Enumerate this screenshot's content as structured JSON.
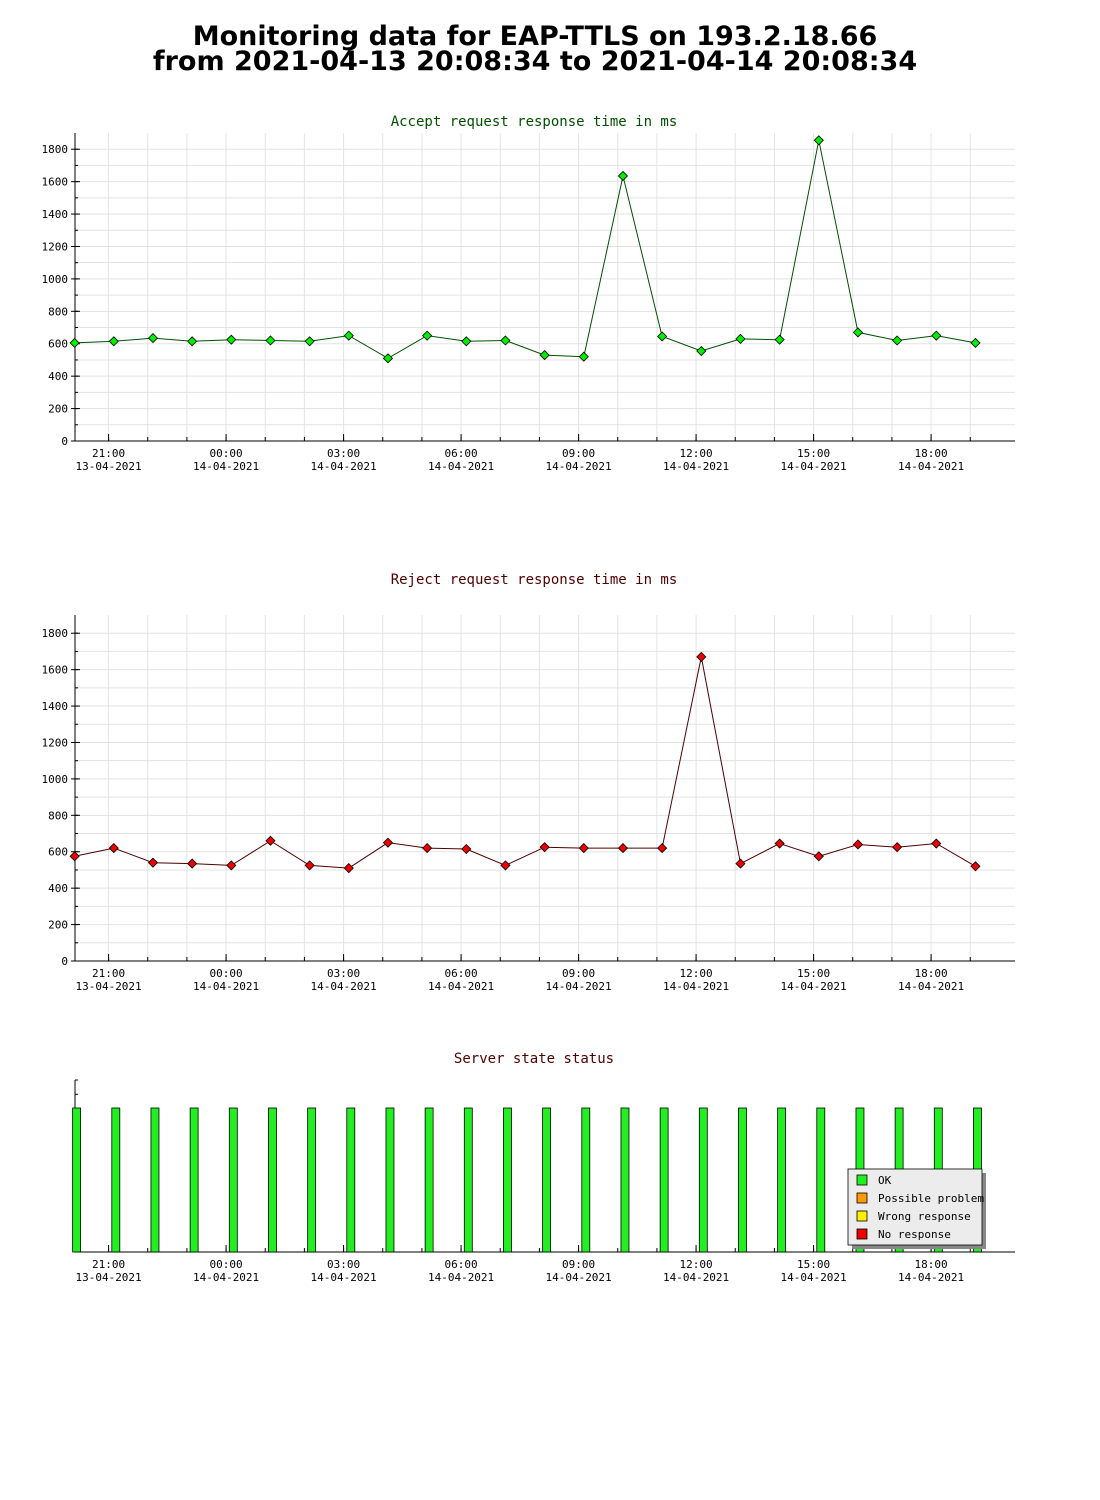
{
  "page": {
    "title_line1": "Monitoring data for EAP-TTLS on 193.2.18.66",
    "title_line2": "from 2021-04-13 20:08:34 to 2021-04-14 20:08:34"
  },
  "chart_data": [
    {
      "type": "line",
      "title": "Accept request response time in ms",
      "title_color": "#005000",
      "line_color": "#005000",
      "marker_color": "#00ee00",
      "xlabel": "",
      "ylabel": "",
      "ylim": [
        0,
        1900
      ],
      "yticks": [
        0,
        200,
        400,
        600,
        800,
        1000,
        1200,
        1400,
        1600,
        1800
      ],
      "grid": true,
      "x": [
        "2021-04-13 20:08",
        "2021-04-13 21:08",
        "2021-04-13 22:08",
        "2021-04-13 23:08",
        "2021-04-14 00:08",
        "2021-04-14 01:08",
        "2021-04-14 02:08",
        "2021-04-14 03:08",
        "2021-04-14 04:08",
        "2021-04-14 05:08",
        "2021-04-14 06:08",
        "2021-04-14 07:08",
        "2021-04-14 08:08",
        "2021-04-14 09:08",
        "2021-04-14 10:08",
        "2021-04-14 11:08",
        "2021-04-14 12:08",
        "2021-04-14 13:08",
        "2021-04-14 14:08",
        "2021-04-14 15:08",
        "2021-04-14 16:08",
        "2021-04-14 17:08",
        "2021-04-14 18:08",
        "2021-04-14 19:08"
      ],
      "values": [
        605,
        615,
        635,
        615,
        625,
        620,
        615,
        650,
        510,
        650,
        615,
        620,
        530,
        520,
        1635,
        645,
        555,
        630,
        625,
        1855,
        670,
        620,
        650,
        605
      ]
    },
    {
      "type": "line",
      "title": "Reject request response time in ms",
      "title_color": "#500000",
      "line_color": "#500000",
      "marker_color": "#ee0000",
      "xlabel": "",
      "ylabel": "",
      "ylim": [
        0,
        1900
      ],
      "yticks": [
        0,
        200,
        400,
        600,
        800,
        1000,
        1200,
        1400,
        1600,
        1800
      ],
      "grid": true,
      "x": [
        "2021-04-13 20:08",
        "2021-04-13 21:08",
        "2021-04-13 22:08",
        "2021-04-13 23:08",
        "2021-04-14 00:08",
        "2021-04-14 01:08",
        "2021-04-14 02:08",
        "2021-04-14 03:08",
        "2021-04-14 04:08",
        "2021-04-14 05:08",
        "2021-04-14 06:08",
        "2021-04-14 07:08",
        "2021-04-14 08:08",
        "2021-04-14 09:08",
        "2021-04-14 10:08",
        "2021-04-14 11:08",
        "2021-04-14 12:08",
        "2021-04-14 13:08",
        "2021-04-14 14:08",
        "2021-04-14 15:08",
        "2021-04-14 16:08",
        "2021-04-14 17:08",
        "2021-04-14 18:08",
        "2021-04-14 19:08"
      ],
      "values": [
        575,
        620,
        540,
        535,
        525,
        660,
        525,
        510,
        650,
        620,
        615,
        525,
        625,
        620,
        620,
        620,
        1670,
        535,
        645,
        575,
        640,
        625,
        645,
        520
      ]
    },
    {
      "type": "bar",
      "title": "Server state status",
      "title_color": "#500000",
      "grid": false,
      "legend_position": "bottom-right",
      "legend": [
        {
          "label": "OK",
          "color": "#22ee22"
        },
        {
          "label": "Possible problem",
          "color": "#ff9900"
        },
        {
          "label": "Wrong response",
          "color": "#ffee00"
        },
        {
          "label": "No response",
          "color": "#ee0000"
        }
      ],
      "x": [
        "2021-04-13 20:08",
        "2021-04-13 21:08",
        "2021-04-13 22:08",
        "2021-04-13 23:08",
        "2021-04-14 00:08",
        "2021-04-14 01:08",
        "2021-04-14 02:08",
        "2021-04-14 03:08",
        "2021-04-14 04:08",
        "2021-04-14 05:08",
        "2021-04-14 06:08",
        "2021-04-14 07:08",
        "2021-04-14 08:08",
        "2021-04-14 09:08",
        "2021-04-14 10:08",
        "2021-04-14 11:08",
        "2021-04-14 12:08",
        "2021-04-14 13:08",
        "2021-04-14 14:08",
        "2021-04-14 15:08",
        "2021-04-14 16:08",
        "2021-04-14 17:08",
        "2021-04-14 18:08",
        "2021-04-14 19:08"
      ],
      "status": [
        "OK",
        "OK",
        "OK",
        "OK",
        "OK",
        "OK",
        "OK",
        "OK",
        "OK",
        "OK",
        "OK",
        "OK",
        "OK",
        "OK",
        "OK",
        "OK",
        "OK",
        "OK",
        "OK",
        "OK",
        "OK",
        "OK",
        "OK",
        "OK"
      ]
    }
  ],
  "x_axis": {
    "ticks": [
      {
        "time": "21:00",
        "date": "13-04-2021"
      },
      {
        "time": "00:00",
        "date": "14-04-2021"
      },
      {
        "time": "03:00",
        "date": "14-04-2021"
      },
      {
        "time": "06:00",
        "date": "14-04-2021"
      },
      {
        "time": "09:00",
        "date": "14-04-2021"
      },
      {
        "time": "12:00",
        "date": "14-04-2021"
      },
      {
        "time": "15:00",
        "date": "14-04-2021"
      },
      {
        "time": "18:00",
        "date": "14-04-2021"
      }
    ]
  }
}
